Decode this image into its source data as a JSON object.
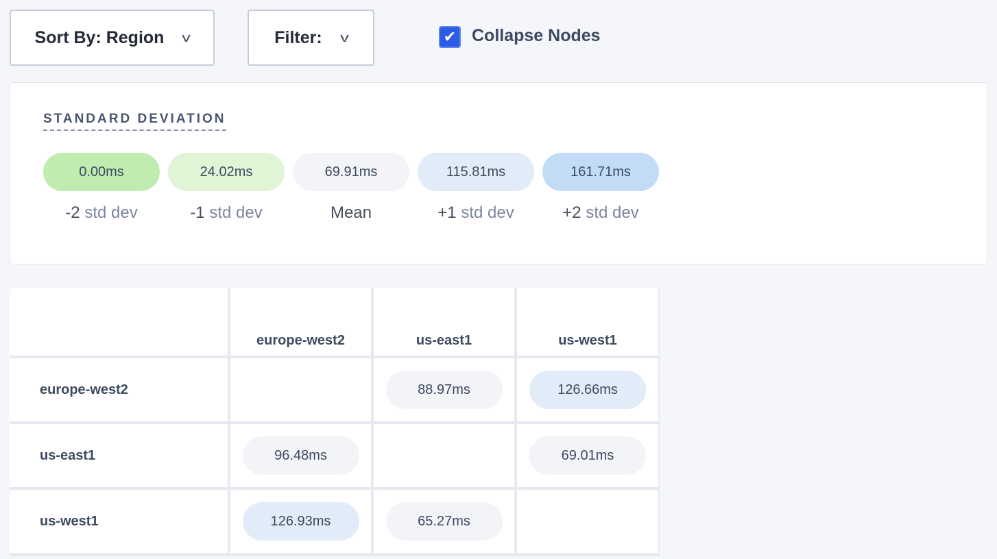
{
  "toolbar": {
    "sort_label": "Sort By: Region",
    "filter_label": "Filter:",
    "collapse_label": "Collapse Nodes",
    "collapse_checked": true
  },
  "std": {
    "title": "STANDARD DEVIATION",
    "items": [
      {
        "value": "0.00ms",
        "prefix": "-2",
        "suffix": "std dev",
        "color": "#c0ecb0"
      },
      {
        "value": "24.02ms",
        "prefix": "-1",
        "suffix": "std dev",
        "color": "#dff5d6"
      },
      {
        "value": "69.91ms",
        "prefix": "Mean",
        "suffix": "",
        "color": "#f3f4f8"
      },
      {
        "value": "115.81ms",
        "prefix": "+1",
        "suffix": "std dev",
        "color": "#e2ecf8"
      },
      {
        "value": "161.71ms",
        "prefix": "+2",
        "suffix": "std dev",
        "color": "#c2dcf8"
      }
    ]
  },
  "matrix": {
    "columns": [
      "europe-west2",
      "us-east1",
      "us-west1"
    ],
    "rows": [
      {
        "label": "europe-west2",
        "cells": [
          null,
          {
            "value": "88.97ms",
            "color": "#f3f4f8"
          },
          {
            "value": "126.66ms",
            "color": "#e2ecf8"
          }
        ]
      },
      {
        "label": "us-east1",
        "cells": [
          {
            "value": "96.48ms",
            "color": "#f3f4f8"
          },
          null,
          {
            "value": "69.01ms",
            "color": "#f3f4f8"
          }
        ]
      },
      {
        "label": "us-west1",
        "cells": [
          {
            "value": "126.93ms",
            "color": "#e2ecf8"
          },
          {
            "value": "65.27ms",
            "color": "#f3f4f8"
          },
          null
        ]
      }
    ]
  }
}
